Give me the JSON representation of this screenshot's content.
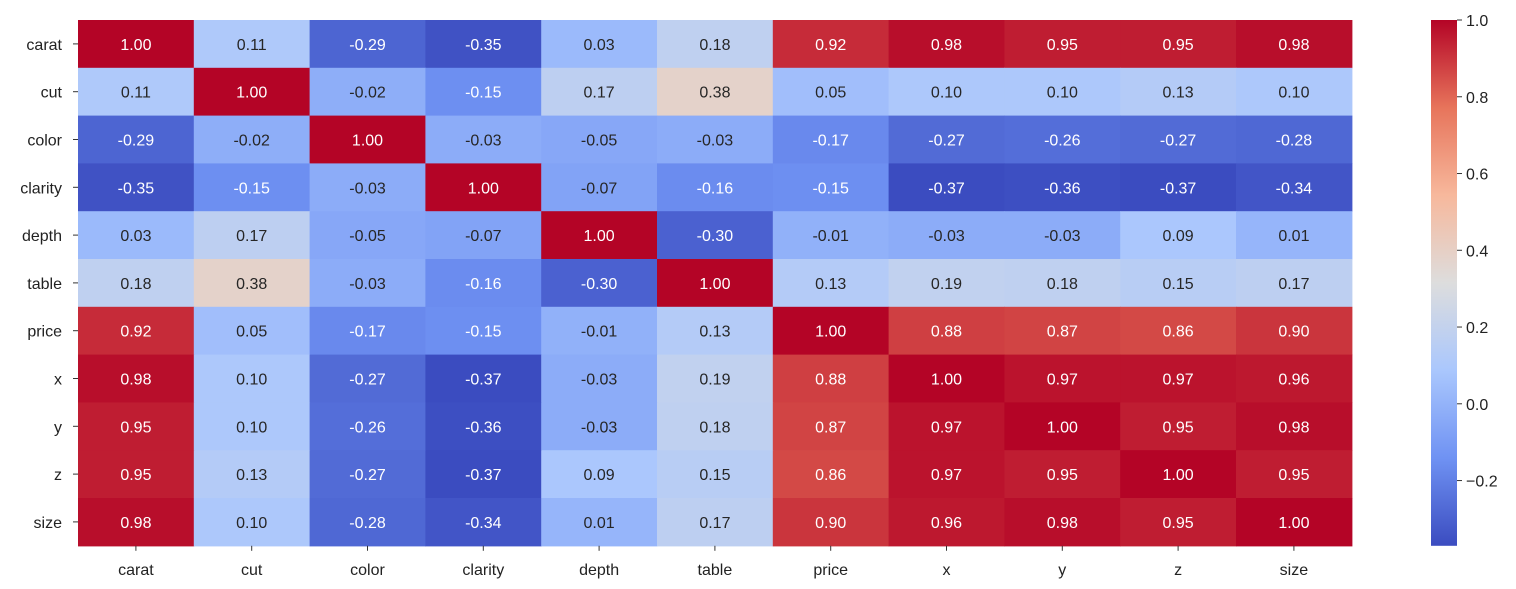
{
  "chart_data": {
    "type": "heatmap",
    "title": "",
    "xlabel": "",
    "ylabel": "",
    "x_labels": [
      "carat",
      "cut",
      "color",
      "clarity",
      "depth",
      "table",
      "price",
      "x",
      "y",
      "z",
      "size"
    ],
    "y_labels": [
      "carat",
      "cut",
      "color",
      "clarity",
      "depth",
      "table",
      "price",
      "x",
      "y",
      "z",
      "size"
    ],
    "values": [
      [
        1.0,
        0.11,
        -0.29,
        -0.35,
        0.03,
        0.18,
        0.92,
        0.98,
        0.95,
        0.95,
        0.98
      ],
      [
        0.11,
        1.0,
        -0.02,
        -0.15,
        0.17,
        0.38,
        0.05,
        0.1,
        0.1,
        0.13,
        0.1
      ],
      [
        -0.29,
        -0.02,
        1.0,
        -0.03,
        -0.05,
        -0.03,
        -0.17,
        -0.27,
        -0.26,
        -0.27,
        -0.28
      ],
      [
        -0.35,
        -0.15,
        -0.03,
        1.0,
        -0.07,
        -0.16,
        -0.15,
        -0.37,
        -0.36,
        -0.37,
        -0.34
      ],
      [
        0.03,
        0.17,
        -0.05,
        -0.07,
        1.0,
        -0.3,
        -0.01,
        -0.03,
        -0.03,
        0.09,
        0.01
      ],
      [
        0.18,
        0.38,
        -0.03,
        -0.16,
        -0.3,
        1.0,
        0.13,
        0.19,
        0.18,
        0.15,
        0.17
      ],
      [
        0.92,
        0.05,
        -0.17,
        -0.15,
        -0.01,
        0.13,
        1.0,
        0.88,
        0.87,
        0.86,
        0.9
      ],
      [
        0.98,
        0.1,
        -0.27,
        -0.37,
        -0.03,
        0.19,
        0.88,
        1.0,
        0.97,
        0.97,
        0.96
      ],
      [
        0.95,
        0.1,
        -0.26,
        -0.36,
        -0.03,
        0.18,
        0.87,
        0.97,
        1.0,
        0.95,
        0.98
      ],
      [
        0.95,
        0.13,
        -0.27,
        -0.37,
        0.09,
        0.15,
        0.86,
        0.97,
        0.95,
        1.0,
        0.95
      ],
      [
        0.98,
        0.1,
        -0.28,
        -0.34,
        0.01,
        0.17,
        0.9,
        0.96,
        0.98,
        0.95,
        1.0
      ]
    ],
    "annotation_format": "0.00",
    "colormap": "coolwarm",
    "colormap_stops": [
      "#3b4cc0",
      "#6f92f3",
      "#aac7fd",
      "#dddddd",
      "#f7b89c",
      "#e7745b",
      "#b40426"
    ],
    "vmin": -0.37,
    "vmax": 1.0,
    "colorbar": {
      "ticks": [
        1.0,
        0.8,
        0.6,
        0.4,
        0.2,
        0.0,
        -0.2
      ],
      "tick_labels": [
        "1.0",
        "0.8",
        "0.6",
        "0.4",
        "0.2",
        "0.0",
        "−0.2"
      ],
      "placement": "right"
    },
    "grid": false
  }
}
